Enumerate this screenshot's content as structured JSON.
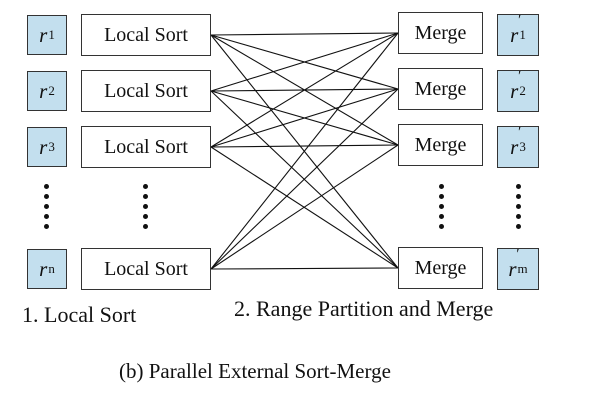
{
  "inputs": [
    {
      "sym": "r",
      "sub": "1"
    },
    {
      "sym": "r",
      "sub": "2"
    },
    {
      "sym": "r",
      "sub": "3"
    },
    {
      "sym": "r",
      "sub": "n"
    }
  ],
  "outputs": [
    {
      "sym": "r",
      "sub": "1",
      "prime": "′"
    },
    {
      "sym": "r",
      "sub": "2",
      "prime": "′"
    },
    {
      "sym": "r",
      "sub": "3",
      "prime": "′"
    },
    {
      "sym": "r",
      "sub": "m",
      "prime": "′"
    }
  ],
  "local_sort_label": "Local Sort",
  "merge_label": "Merge",
  "step1": "1. Local Sort",
  "step2": "2. Range Partition and Merge",
  "caption": "(b) Parallel External Sort-Merge",
  "colors": {
    "relation_fill": "#c3dfee",
    "border": "#333333"
  }
}
